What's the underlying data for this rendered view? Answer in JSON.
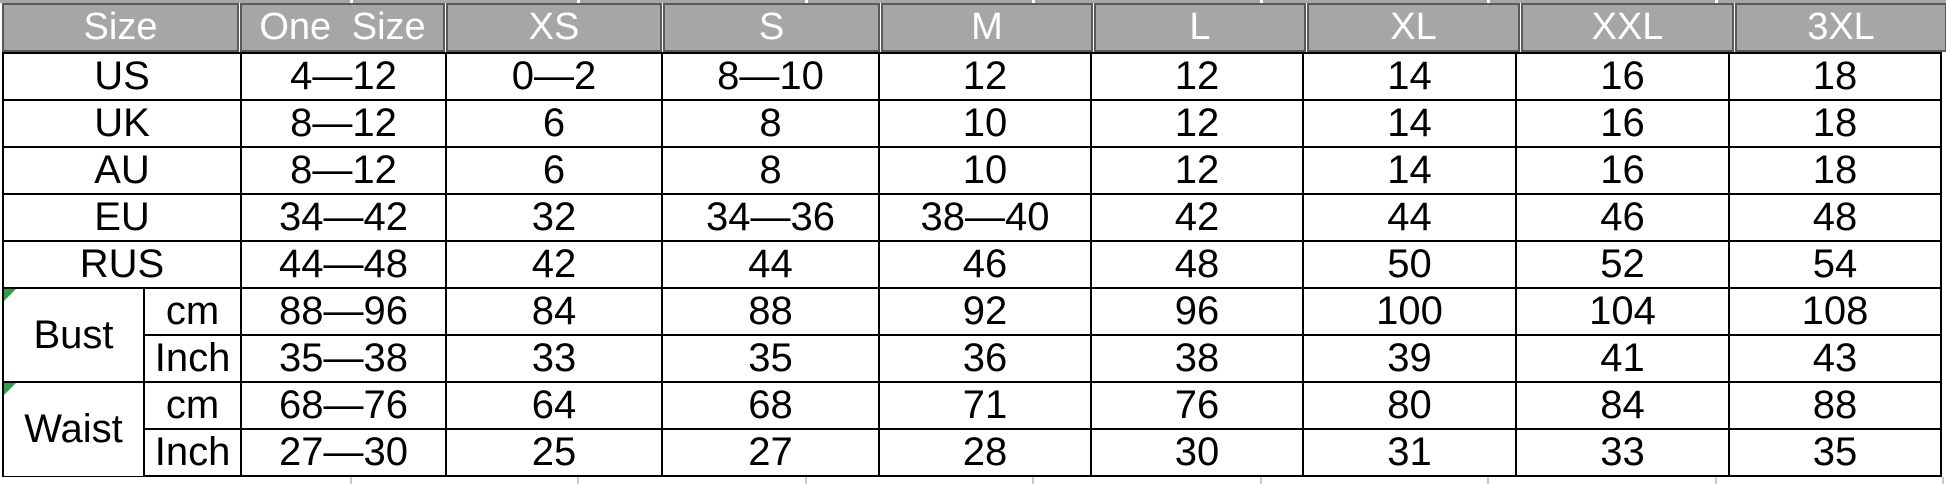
{
  "chart_data": {
    "type": "table",
    "columns": [
      "Size",
      "One Size",
      "XS",
      "S",
      "M",
      "L",
      "XL",
      "XXL",
      "3XL"
    ],
    "region_rows": [
      {
        "label": "US",
        "values": [
          "4—12",
          "0—2",
          "8—10",
          "12",
          "12",
          "14",
          "16",
          "18"
        ]
      },
      {
        "label": "UK",
        "values": [
          "8—12",
          "6",
          "8",
          "10",
          "12",
          "14",
          "16",
          "18"
        ]
      },
      {
        "label": "AU",
        "values": [
          "8—12",
          "6",
          "8",
          "10",
          "12",
          "14",
          "16",
          "18"
        ]
      },
      {
        "label": "EU",
        "values": [
          "34—42",
          "32",
          "34—36",
          "38—40",
          "42",
          "44",
          "46",
          "48"
        ]
      },
      {
        "label": "RUS",
        "values": [
          "44—48",
          "42",
          "44",
          "46",
          "48",
          "50",
          "52",
          "54"
        ]
      }
    ],
    "measure_groups": [
      {
        "label": "Bust",
        "rows": [
          {
            "unit": "cm",
            "values": [
              "88—96",
              "84",
              "88",
              "92",
              "96",
              "100",
              "104",
              "108"
            ]
          },
          {
            "unit": "Inch",
            "values": [
              "35—38",
              "33",
              "35",
              "36",
              "38",
              "39",
              "41",
              "43"
            ]
          }
        ]
      },
      {
        "label": "Waist",
        "rows": [
          {
            "unit": "cm",
            "values": [
              "68—76",
              "64",
              "68",
              "71",
              "76",
              "80",
              "84",
              "88"
            ]
          },
          {
            "unit": "Inch",
            "values": [
              "27—30",
              "25",
              "27",
              "28",
              "30",
              "31",
              "33",
              "35"
            ]
          }
        ]
      }
    ]
  },
  "icons": {
    "bust_flag": "comment-flag-icon",
    "waist_flag": "comment-flag-icon"
  },
  "colors": {
    "header_bg": "#a6a6a6",
    "header_border": "#595959",
    "header_text": "#ffffff",
    "body_border": "#000000",
    "flag_green": "#2f9e44"
  }
}
